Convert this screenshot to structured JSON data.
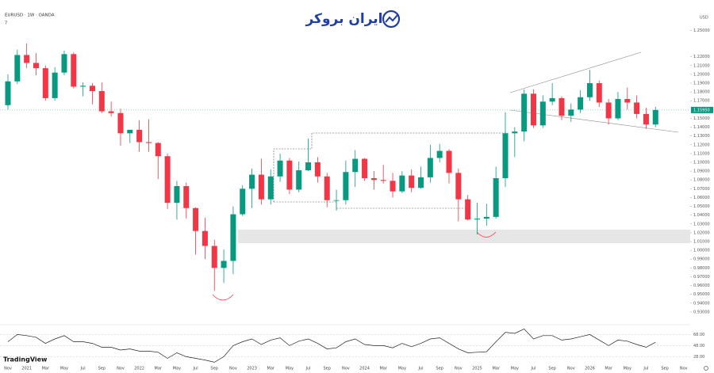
{
  "chart_data": {
    "type": "candlestick",
    "title": "EURUSD · 1W · OANDA",
    "subtitle": "7",
    "brand": "ایران بروکر",
    "platform": "TradingView",
    "currency": "USD",
    "colors": {
      "up": "#089981",
      "down": "#f23645"
    },
    "open": [
      1.165,
      1.192,
      1.222,
      1.213,
      1.207,
      1.173,
      1.202,
      1.223,
      1.186,
      1.187,
      1.181,
      1.158,
      1.156,
      1.133,
      1.137,
      1.123,
      1.122,
      1.107,
      1.054,
      1.073,
      1.048,
      1.022,
      1.005,
      0.98,
      0.988,
      1.041,
      1.07,
      1.086,
      1.058,
      1.084,
      1.102,
      1.069,
      1.091,
      1.1,
      1.084,
      1.057,
      1.057,
      1.089,
      1.104,
      1.082,
      1.08,
      1.079,
      1.067,
      1.085,
      1.071,
      1.083,
      1.105,
      1.113,
      1.088,
      1.058,
      1.035,
      1.036,
      1.038,
      1.082,
      1.133,
      1.135,
      1.178,
      1.142,
      1.169,
      1.173,
      1.153,
      1.16,
      1.174,
      1.19,
      1.168,
      1.15,
      1.172,
      1.168,
      1.155,
      1.143
    ],
    "high": [
      1.2,
      1.228,
      1.235,
      1.224,
      1.21,
      1.208,
      1.227,
      1.225,
      1.191,
      1.19,
      1.191,
      1.169,
      1.161,
      1.137,
      1.148,
      1.149,
      1.123,
      1.11,
      1.079,
      1.077,
      1.049,
      1.037,
      1.012,
      1.001,
      1.05,
      1.074,
      1.093,
      1.104,
      1.092,
      1.11,
      1.105,
      1.101,
      1.127,
      1.106,
      1.088,
      1.069,
      1.102,
      1.114,
      1.105,
      1.09,
      1.097,
      1.088,
      1.09,
      1.092,
      1.095,
      1.12,
      1.121,
      1.115,
      1.093,
      1.063,
      1.054,
      1.053,
      1.095,
      1.157,
      1.14,
      1.183,
      1.183,
      1.176,
      1.19,
      1.175,
      1.167,
      1.182,
      1.205,
      1.193,
      1.172,
      1.18,
      1.185,
      1.176,
      1.162,
      1.163
    ],
    "low": [
      1.16,
      1.189,
      1.207,
      1.199,
      1.17,
      1.17,
      1.199,
      1.184,
      1.175,
      1.166,
      1.156,
      1.152,
      1.119,
      1.122,
      1.112,
      1.112,
      1.081,
      1.047,
      1.035,
      1.036,
      0.995,
      0.99,
      0.954,
      0.963,
      0.973,
      1.039,
      1.048,
      1.052,
      1.052,
      1.078,
      1.064,
      1.066,
      1.09,
      1.077,
      1.049,
      1.045,
      1.052,
      1.072,
      1.079,
      1.069,
      1.076,
      1.06,
      1.065,
      1.066,
      1.07,
      1.077,
      1.1,
      1.076,
      1.033,
      1.034,
      1.018,
      1.028,
      1.036,
      1.072,
      1.106,
      1.124,
      1.139,
      1.139,
      1.165,
      1.148,
      1.146,
      1.156,
      1.17,
      1.163,
      1.143,
      1.148,
      1.16,
      1.15,
      1.138,
      1.14
    ],
    "close": [
      1.192,
      1.222,
      1.213,
      1.207,
      1.173,
      1.202,
      1.223,
      1.186,
      1.187,
      1.181,
      1.158,
      1.156,
      1.133,
      1.137,
      1.123,
      1.122,
      1.107,
      1.054,
      1.073,
      1.048,
      1.022,
      1.005,
      0.98,
      0.988,
      1.041,
      1.07,
      1.086,
      1.058,
      1.084,
      1.102,
      1.069,
      1.091,
      1.1,
      1.084,
      1.057,
      1.057,
      1.089,
      1.104,
      1.082,
      1.08,
      1.079,
      1.067,
      1.085,
      1.071,
      1.083,
      1.105,
      1.113,
      1.088,
      1.058,
      1.035,
      1.036,
      1.038,
      1.082,
      1.133,
      1.135,
      1.178,
      1.142,
      1.169,
      1.173,
      1.153,
      1.16,
      1.174,
      1.19,
      1.168,
      1.15,
      1.172,
      1.168,
      1.155,
      1.143,
      1.1595
    ],
    "last_price": {
      "value": 1.1595,
      "label": "1.15950"
    },
    "ylim": [
      0.92,
      1.28
    ],
    "yticks": [
      {
        "value": 0.93,
        "label": "0.93000"
      },
      {
        "value": 0.94,
        "label": "0.94000"
      },
      {
        "value": 0.95,
        "label": "0.95000"
      },
      {
        "value": 0.96,
        "label": "0.96000"
      },
      {
        "value": 0.97,
        "label": "0.97000"
      },
      {
        "value": 0.98,
        "label": "0.98000"
      },
      {
        "value": 0.99,
        "label": "0.99000"
      },
      {
        "value": 1.0,
        "label": "1.00000"
      },
      {
        "value": 1.01,
        "label": "1.01000"
      },
      {
        "value": 1.02,
        "label": "1.02000"
      },
      {
        "value": 1.03,
        "label": "1.03000"
      },
      {
        "value": 1.04,
        "label": "1.04000"
      },
      {
        "value": 1.05,
        "label": "1.05000"
      },
      {
        "value": 1.06,
        "label": "1.06000"
      },
      {
        "value": 1.07,
        "label": "1.07000"
      },
      {
        "value": 1.08,
        "label": "1.08000"
      },
      {
        "value": 1.09,
        "label": "1.09000"
      },
      {
        "value": 1.1,
        "label": "1.10000"
      },
      {
        "value": 1.11,
        "label": "1.11000"
      },
      {
        "value": 1.12,
        "label": "1.12000"
      },
      {
        "value": 1.13,
        "label": "1.13000"
      },
      {
        "value": 1.14,
        "label": "1.14000"
      },
      {
        "value": 1.15,
        "label": "1.15000"
      },
      {
        "value": 1.17,
        "label": "1.17000"
      },
      {
        "value": 1.18,
        "label": "1.18000"
      },
      {
        "value": 1.19,
        "label": "1.19000"
      },
      {
        "value": 1.2,
        "label": "1.20000"
      },
      {
        "value": 1.21,
        "label": "1.21000"
      },
      {
        "value": 1.22,
        "label": "1.22000"
      },
      {
        "value": 1.25,
        "label": "1.25000"
      }
    ],
    "x_labels": [
      "Nov",
      "2021",
      "Mar",
      "May",
      "Jul",
      "Sep",
      "Nov",
      "2022",
      "Mar",
      "May",
      "Jul",
      "Sep",
      "Nov",
      "2023",
      "Mar",
      "May",
      "Jul",
      "Sep",
      "Nov",
      "2024",
      "Mar",
      "May",
      "Jul",
      "Sep",
      "Nov",
      "2025",
      "Mar",
      "May",
      "Jul",
      "Sep",
      "Nov",
      "2026",
      "Mar",
      "May",
      "Jul",
      "Sep",
      "Nov"
    ],
    "indicator": {
      "color": "#222",
      "ylim": [
        20,
        80
      ],
      "yticks": [
        {
          "value": 28,
          "label": "28.00"
        },
        {
          "value": 48,
          "label": "48.00"
        },
        {
          "value": 68,
          "label": "68.00"
        }
      ],
      "values": [
        55,
        68,
        66,
        63,
        52,
        60,
        66,
        55,
        55,
        52,
        45,
        45,
        40,
        42,
        38,
        38,
        36,
        25,
        35,
        28,
        25,
        22,
        18,
        28,
        48,
        55,
        60,
        50,
        58,
        62,
        48,
        56,
        60,
        52,
        42,
        44,
        55,
        60,
        50,
        48,
        48,
        44,
        52,
        46,
        52,
        60,
        62,
        52,
        42,
        35,
        36,
        37,
        55,
        72,
        70,
        78,
        60,
        66,
        66,
        58,
        60,
        64,
        68,
        58,
        48,
        58,
        56,
        50,
        45,
        54
      ]
    }
  }
}
